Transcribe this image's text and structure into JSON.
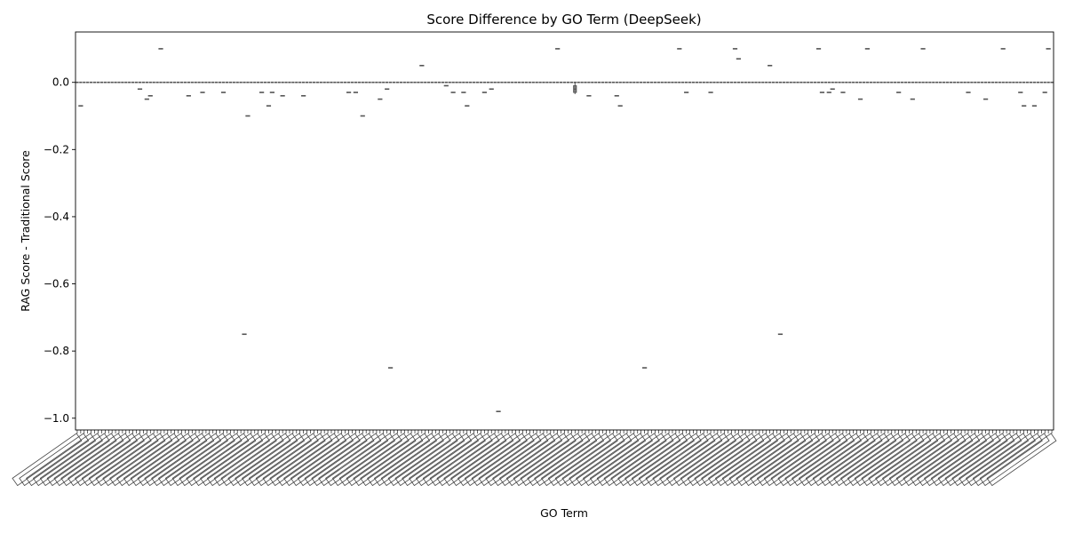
{
  "chart_data": {
    "type": "box",
    "title": "Score Difference by GO Term (DeepSeek)",
    "xlabel": "GO Term",
    "ylabel": "RAG Score - Traditional Score",
    "ylim": [
      -1.035,
      0.15
    ],
    "yticks": [
      0.0,
      -0.2,
      -0.4,
      -0.6,
      -0.8,
      -1.0
    ],
    "ytick_labels": [
      "0.0",
      "−0.2",
      "−0.4",
      "−0.6",
      "−0.8",
      "−1.0"
    ],
    "n_categories": 281,
    "category_label_note": "GO term IDs (GO:00xxxxx) drawn rotated and overlapping; individual IDs are not legible",
    "baseline_value": 0.0,
    "box_color": "#555555",
    "outliers": [
      {
        "index": 1,
        "value": -0.07
      },
      {
        "index": 18,
        "value": -0.02
      },
      {
        "index": 20,
        "value": -0.05
      },
      {
        "index": 21,
        "value": -0.04
      },
      {
        "index": 24,
        "value": 0.1
      },
      {
        "index": 32,
        "value": -0.04
      },
      {
        "index": 36,
        "value": -0.03
      },
      {
        "index": 42,
        "value": -0.03
      },
      {
        "index": 48,
        "value": -0.75
      },
      {
        "index": 49,
        "value": -0.1
      },
      {
        "index": 53,
        "value": -0.03
      },
      {
        "index": 55,
        "value": -0.07
      },
      {
        "index": 56,
        "value": -0.03
      },
      {
        "index": 59,
        "value": -0.04
      },
      {
        "index": 65,
        "value": -0.04
      },
      {
        "index": 78,
        "value": -0.03
      },
      {
        "index": 80,
        "value": -0.03
      },
      {
        "index": 82,
        "value": -0.1
      },
      {
        "index": 87,
        "value": -0.05
      },
      {
        "index": 89,
        "value": -0.02
      },
      {
        "index": 90,
        "value": -0.85
      },
      {
        "index": 99,
        "value": 0.05
      },
      {
        "index": 106,
        "value": -0.01
      },
      {
        "index": 108,
        "value": -0.03
      },
      {
        "index": 111,
        "value": -0.03
      },
      {
        "index": 112,
        "value": -0.07
      },
      {
        "index": 117,
        "value": -0.03
      },
      {
        "index": 119,
        "value": -0.02
      },
      {
        "index": 121,
        "value": -0.98
      },
      {
        "index": 138,
        "value": 0.1
      },
      {
        "index": 147,
        "value": -0.04
      },
      {
        "index": 155,
        "value": -0.04
      },
      {
        "index": 156,
        "value": -0.07
      },
      {
        "index": 163,
        "value": -0.85
      },
      {
        "index": 173,
        "value": 0.1
      },
      {
        "index": 175,
        "value": -0.03
      },
      {
        "index": 182,
        "value": -0.03
      },
      {
        "index": 189,
        "value": 0.1
      },
      {
        "index": 190,
        "value": 0.07
      },
      {
        "index": 199,
        "value": 0.05
      },
      {
        "index": 202,
        "value": -0.75
      },
      {
        "index": 213,
        "value": 0.1
      },
      {
        "index": 214,
        "value": -0.03
      },
      {
        "index": 216,
        "value": -0.03
      },
      {
        "index": 217,
        "value": -0.02
      },
      {
        "index": 220,
        "value": -0.03
      },
      {
        "index": 225,
        "value": -0.05
      },
      {
        "index": 227,
        "value": 0.1
      },
      {
        "index": 236,
        "value": -0.03
      },
      {
        "index": 240,
        "value": -0.05
      },
      {
        "index": 243,
        "value": 0.1
      },
      {
        "index": 256,
        "value": -0.03
      },
      {
        "index": 261,
        "value": -0.05
      },
      {
        "index": 266,
        "value": 0.1
      },
      {
        "index": 271,
        "value": -0.03
      },
      {
        "index": 272,
        "value": -0.07
      },
      {
        "index": 275,
        "value": -0.07
      },
      {
        "index": 278,
        "value": -0.03
      },
      {
        "index": 279,
        "value": 0.1
      }
    ],
    "boxes": [
      {
        "index": 143,
        "q1": -0.03,
        "median": -0.02,
        "q3": -0.01,
        "min": -0.035,
        "max": 0.0
      }
    ],
    "grid": false,
    "legend": "none"
  }
}
